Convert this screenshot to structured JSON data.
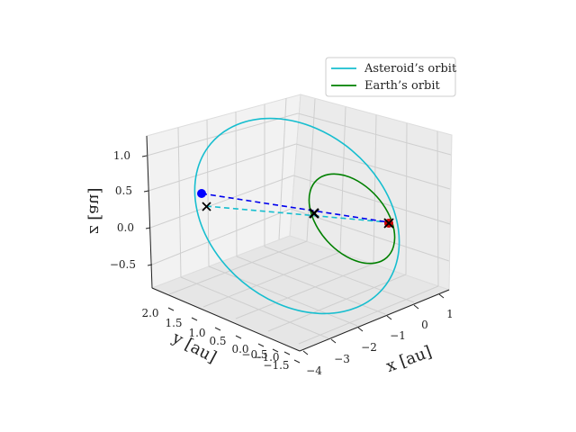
{
  "chart_data": {
    "type": "line3d",
    "axes": {
      "x": {
        "label": "x [au]",
        "ticks": [
          "1",
          "0",
          "−1",
          "−2",
          "−3",
          "−4"
        ]
      },
      "y": {
        "label": "y [au]",
        "ticks": [
          "2.0",
          "1.5",
          "1.0",
          "0.5",
          "0.0",
          "−0.5",
          "−1.0",
          "−1.5"
        ]
      },
      "z": {
        "label": "z [au]",
        "ticks": [
          "1.0",
          "0.5",
          "0.0",
          "−0.5"
        ]
      }
    },
    "legend": {
      "position": "top-right",
      "entries": [
        {
          "label": "Asteroid’s orbit",
          "color": "#17becf"
        },
        {
          "label": "Earth’s orbit",
          "color": "#008000"
        }
      ]
    },
    "series": [
      {
        "name": "Asteroid’s orbit",
        "kind": "ellipse",
        "color": "#17becf"
      },
      {
        "name": "Earth’s orbit",
        "kind": "ellipse",
        "color": "#008000"
      }
    ],
    "markers": [
      {
        "shape": "dot",
        "color": "#0000ff"
      },
      {
        "shape": "x",
        "color": "#cc0000"
      },
      {
        "shape": "x",
        "color": "#000000"
      },
      {
        "shape": "x",
        "color": "#cc0000"
      }
    ],
    "grid": true
  }
}
